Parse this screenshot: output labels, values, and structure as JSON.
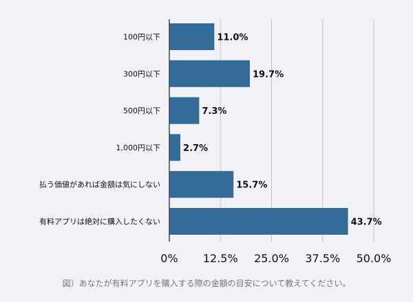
{
  "chart_data": {
    "type": "bar",
    "orientation": "horizontal",
    "categories": [
      "100円以下",
      "300円以下",
      "500円以下",
      "1,000円以下",
      "払う価値があれば金額は気にしない",
      "有料アプリは絶対に購入したくない"
    ],
    "values": [
      11.0,
      19.7,
      7.3,
      2.7,
      15.7,
      43.7
    ],
    "value_labels": [
      "11.0%",
      "19.7%",
      "7.3%",
      "2.7%",
      "15.7%",
      "43.7%"
    ],
    "xlim": [
      0,
      50
    ],
    "xticks": [
      0,
      12.5,
      25,
      37.5,
      50
    ],
    "xtick_labels": [
      "0%",
      "12.5%",
      "25.0%",
      "37.5%",
      "50.0%"
    ],
    "grid": "vertical",
    "bar_color": "#336b99",
    "grid_color": "#c4c4c4",
    "caption": "図）あなたが有料アプリを購入する際の金額の目安について教えてください。"
  }
}
